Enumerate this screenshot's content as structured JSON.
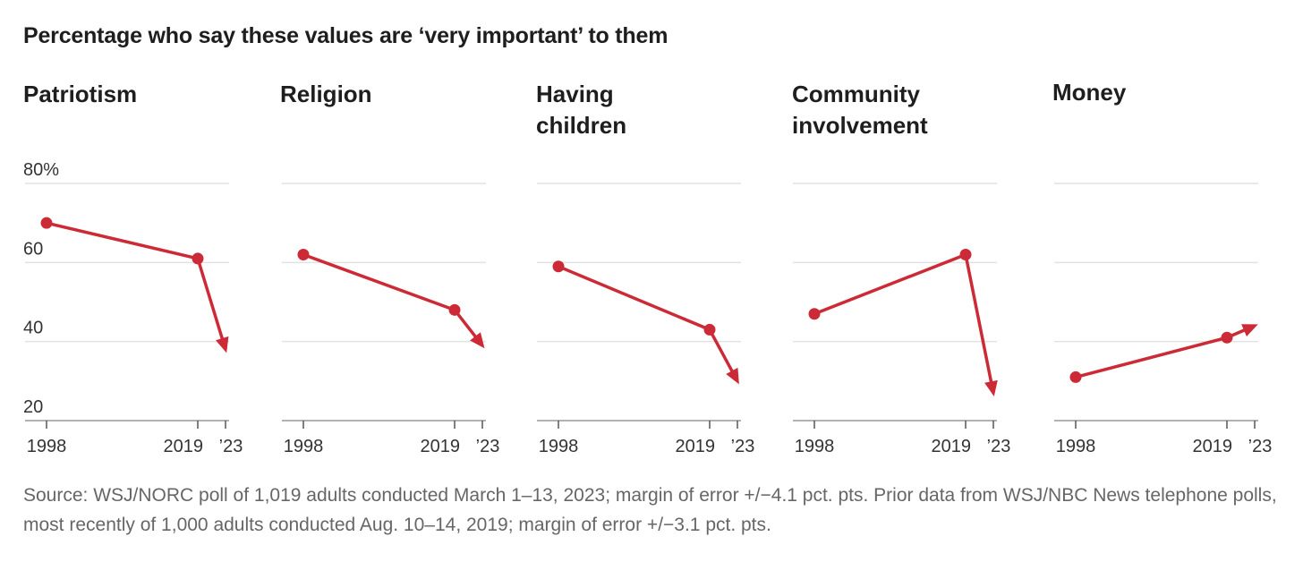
{
  "title": "Percentage who say these values are ‘very important’ to them",
  "source": "Source: WSJ/NORC poll of 1,019 adults conducted March 1–13, 2023; margin of error +/−4.1 pct. pts. Prior data from WSJ/NBC News telephone polls, most recently of 1,000 adults conducted Aug. 10–14, 2019; margin of error +/−3.1 pct. pts.",
  "colors": {
    "series": "#cc2a36",
    "grid": "#e2e2e2",
    "axis": "#999999"
  },
  "chart_data": {
    "type": "line",
    "x": [
      1998,
      2019,
      2023
    ],
    "x_tick_labels": [
      "1998",
      "2019",
      "’23"
    ],
    "y_ticks": [
      20,
      40,
      60,
      80
    ],
    "y_tick_labels": [
      "20",
      "40",
      "60",
      "80%"
    ],
    "ylim": [
      20,
      80
    ],
    "grid": true,
    "panels": [
      {
        "title": "Patriotism",
        "values": [
          70,
          61,
          38
        ]
      },
      {
        "title": "Religion",
        "values": [
          62,
          48,
          39
        ]
      },
      {
        "title": "Having\nchildren",
        "values": [
          59,
          43,
          30
        ]
      },
      {
        "title": "Community\ninvolvement",
        "values": [
          47,
          62,
          27
        ]
      },
      {
        "title": "Money",
        "values": [
          31,
          41,
          44
        ]
      }
    ]
  }
}
